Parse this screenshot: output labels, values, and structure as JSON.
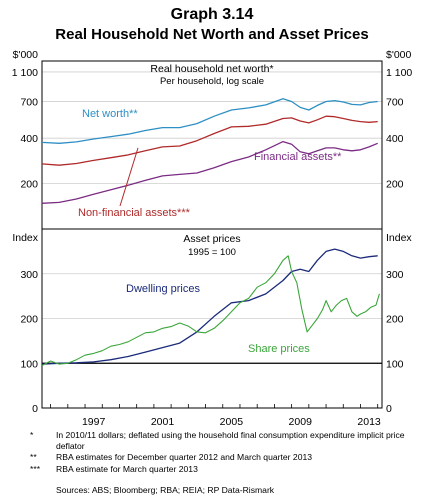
{
  "title": "Graph 3.14",
  "subtitle": "Real Household Net Worth and Asset Prices",
  "colors": {
    "net_worth": "#2e8fc4",
    "non_financial": "#b02a2a",
    "financial": "#7b2c84",
    "dwelling": "#1b2a7a",
    "share": "#3aa63a"
  },
  "chart_data": [
    {
      "type": "line",
      "title": "Real household net worth*",
      "subtitle": "Per household, log scale",
      "unit_left": "$'000",
      "unit_right": "$'000",
      "scale": "log",
      "ylim": [
        100,
        1300
      ],
      "yticks": [
        200,
        400,
        700,
        1100
      ],
      "ytick_labels": [
        "200",
        "400",
        "700",
        "1 100"
      ],
      "xlim": [
        1993.5,
        2013.25
      ],
      "series": [
        {
          "name": "Net worth**",
          "x": [
            1993.5,
            1994.5,
            1995.5,
            1996.5,
            1997.5,
            1998.5,
            1999.5,
            2000.5,
            2001.5,
            2002.5,
            2003.5,
            2004.5,
            2005.5,
            2006.5,
            2007.5,
            2008.0,
            2008.5,
            2009.0,
            2009.5,
            2010.0,
            2010.5,
            2011.0,
            2011.5,
            2012.0,
            2012.5,
            2013.0
          ],
          "values": [
            375,
            370,
            378,
            395,
            410,
            425,
            450,
            470,
            470,
            500,
            560,
            615,
            635,
            665,
            730,
            700,
            640,
            615,
            660,
            700,
            710,
            695,
            670,
            665,
            690,
            700
          ]
        },
        {
          "name": "Non-financial assets***",
          "x": [
            1993.5,
            1994.5,
            1995.5,
            1996.5,
            1997.5,
            1998.5,
            1999.5,
            2000.5,
            2001.5,
            2002.5,
            2003.5,
            2004.5,
            2005.5,
            2006.5,
            2007.5,
            2008.0,
            2008.5,
            2009.0,
            2009.5,
            2010.0,
            2010.5,
            2011.0,
            2011.5,
            2012.0,
            2012.5,
            2013.0
          ],
          "values": [
            270,
            265,
            272,
            285,
            297,
            310,
            330,
            350,
            355,
            385,
            430,
            475,
            480,
            495,
            540,
            545,
            520,
            505,
            530,
            560,
            555,
            540,
            525,
            515,
            510,
            515
          ]
        },
        {
          "name": "Financial assets**",
          "x": [
            1993.5,
            1994.5,
            1995.5,
            1996.5,
            1997.5,
            1998.5,
            1999.5,
            2000.5,
            2001.5,
            2002.5,
            2003.5,
            2004.5,
            2005.5,
            2006.5,
            2007.5,
            2008.0,
            2008.5,
            2009.0,
            2009.5,
            2010.0,
            2010.5,
            2011.0,
            2011.5,
            2012.0,
            2012.5,
            2013.0
          ],
          "values": [
            148,
            150,
            158,
            170,
            182,
            195,
            210,
            225,
            230,
            235,
            255,
            280,
            300,
            335,
            380,
            365,
            325,
            315,
            330,
            345,
            345,
            335,
            330,
            335,
            350,
            370
          ]
        }
      ]
    },
    {
      "type": "line",
      "title": "Asset prices",
      "subtitle": "1995 = 100",
      "unit_left": "Index",
      "unit_right": "Index",
      "ylim": [
        0,
        400
      ],
      "yticks": [
        0,
        100,
        200,
        300
      ],
      "xlim": [
        1993.5,
        2013.25
      ],
      "xticks": [
        1997,
        2001,
        2005,
        2009,
        2013
      ],
      "series": [
        {
          "name": "Dwelling prices",
          "x": [
            1993.5,
            1994.5,
            1995.5,
            1996.5,
            1997.5,
            1998.5,
            1999.5,
            2000.5,
            2001.5,
            2002.5,
            2003.5,
            2004.5,
            2005.5,
            2006.5,
            2007.5,
            2008.0,
            2008.5,
            2009.0,
            2009.5,
            2010.0,
            2010.5,
            2011.0,
            2011.5,
            2012.0,
            2012.5,
            2013.0
          ],
          "values": [
            98,
            100,
            101,
            103,
            108,
            115,
            125,
            135,
            145,
            170,
            205,
            235,
            240,
            255,
            285,
            305,
            310,
            305,
            330,
            350,
            355,
            350,
            340,
            335,
            338,
            340
          ]
        },
        {
          "name": "Share prices",
          "x": [
            1993.5,
            1994.0,
            1994.5,
            1995.0,
            1995.5,
            1996.0,
            1996.5,
            1997.0,
            1997.5,
            1998.0,
            1998.5,
            1999.0,
            1999.5,
            2000.0,
            2000.5,
            2001.0,
            2001.5,
            2002.0,
            2002.5,
            2003.0,
            2003.5,
            2004.0,
            2004.5,
            2005.0,
            2005.5,
            2006.0,
            2006.5,
            2007.0,
            2007.5,
            2007.8,
            2008.0,
            2008.3,
            2008.6,
            2008.9,
            2009.2,
            2009.5,
            2009.8,
            2010.0,
            2010.3,
            2010.6,
            2010.9,
            2011.2,
            2011.5,
            2011.8,
            2012.0,
            2012.3,
            2012.6,
            2012.9,
            2013.1
          ],
          "values": [
            95,
            105,
            98,
            100,
            108,
            118,
            122,
            128,
            138,
            142,
            148,
            158,
            168,
            170,
            178,
            182,
            190,
            183,
            170,
            168,
            178,
            195,
            215,
            235,
            245,
            270,
            280,
            300,
            330,
            340,
            305,
            280,
            220,
            170,
            185,
            200,
            220,
            240,
            215,
            230,
            240,
            245,
            215,
            205,
            210,
            215,
            225,
            230,
            255
          ]
        }
      ]
    }
  ],
  "xtick_labels": [
    "1997",
    "2001",
    "2005",
    "2009",
    "2013"
  ],
  "notes": [
    {
      "mark": "*",
      "text": "In 2010/11 dollars; deflated using the household final consumption expenditure implicit price deflator"
    },
    {
      "mark": "**",
      "text": "RBA estimates for December quarter 2012 and March quarter 2013"
    },
    {
      "mark": "***",
      "text": "RBA estimate for March quarter 2013"
    }
  ],
  "sources": "Sources: ABS; Bloomberg; RBA; REIA; RP Data-Rismark"
}
